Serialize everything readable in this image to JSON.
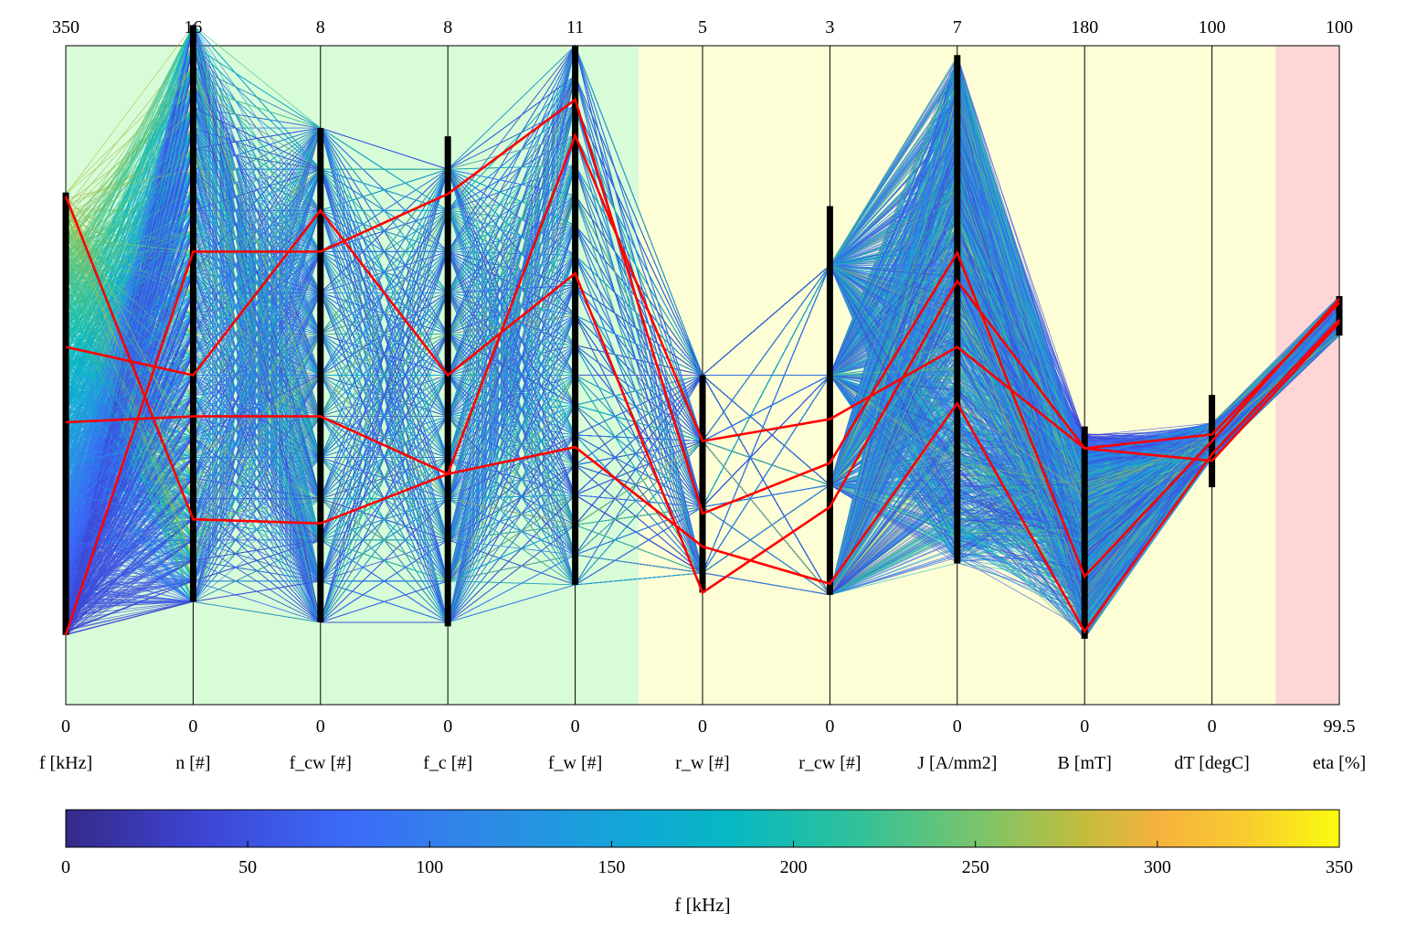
{
  "chart_data": {
    "type": "parallel_coordinates",
    "xlabel": "",
    "ylabel": "",
    "axes": [
      {
        "name": "f [kHz]",
        "min": "0",
        "max": "350"
      },
      {
        "name": "n [#]",
        "min": "0",
        "max": "16"
      },
      {
        "name": "f_cw [#]",
        "min": "0",
        "max": "8"
      },
      {
        "name": "f_c [#]",
        "min": "0",
        "max": "8"
      },
      {
        "name": "f_w [#]",
        "min": "0",
        "max": "11"
      },
      {
        "name": "r_w [#]",
        "min": "0",
        "max": "5"
      },
      {
        "name": "r_cw [#]",
        "min": "0",
        "max": "3"
      },
      {
        "name": "J [A/mm2]",
        "min": "0",
        "max": "7"
      },
      {
        "name": "B [mT]",
        "min": "0",
        "max": "180"
      },
      {
        "name": "dT [degC]",
        "min": "0",
        "max": "100"
      },
      {
        "name": "eta [%]",
        "min": "99.5",
        "max": "100"
      }
    ],
    "axis_ranges": [
      [
        0,
        350
      ],
      [
        0,
        16
      ],
      [
        0,
        8
      ],
      [
        0,
        8
      ],
      [
        0,
        11
      ],
      [
        0,
        5
      ],
      [
        0,
        3
      ],
      [
        0,
        7
      ],
      [
        0,
        180
      ],
      [
        0,
        100
      ],
      [
        99.5,
        100
      ]
    ],
    "filtered_ranges": [
      [
        37,
        272
      ],
      [
        2.5,
        16.5
      ],
      [
        1.0,
        7.0
      ],
      [
        0.95,
        6.9
      ],
      [
        2.0,
        11.0
      ],
      [
        0.85,
        2.5
      ],
      [
        0.5,
        2.27
      ],
      [
        1.5,
        6.9
      ],
      [
        18,
        76
      ],
      [
        33,
        47
      ],
      [
        99.78,
        99.81
      ]
    ],
    "background_regions": [
      {
        "from_axis": 0,
        "to_axis": 4.5,
        "color": "#d8fcd8"
      },
      {
        "from_axis": 4.5,
        "to_axis": 9.5,
        "color": "#fefed6"
      },
      {
        "from_axis": 9.5,
        "to_axis": 10,
        "color": "#fed6d6"
      }
    ],
    "highlighted_lines": [
      [
        270,
        4.5,
        2.2,
        2.8,
        4.3,
        1.2,
        0.55,
        3.2,
        20,
        38,
        99.792
      ],
      [
        190,
        8.0,
        6.0,
        4.0,
        7.2,
        0.85,
        0.9,
        4.5,
        70,
        41,
        99.805
      ],
      [
        37,
        11.0,
        5.5,
        6.2,
        10.1,
        1.45,
        1.1,
        4.8,
        35,
        40,
        99.808
      ],
      [
        150,
        7.0,
        3.5,
        2.8,
        9.5,
        2.0,
        1.3,
        3.8,
        70,
        37,
        99.79
      ]
    ],
    "highlight_color": "#ff0000",
    "colormap": {
      "name": "parula",
      "min": 0,
      "max": 350,
      "label": "f [kHz]",
      "ticks": [
        "0",
        "50",
        "100",
        "150",
        "200",
        "250",
        "300",
        "350"
      ]
    },
    "grid": false,
    "legend": "none"
  }
}
